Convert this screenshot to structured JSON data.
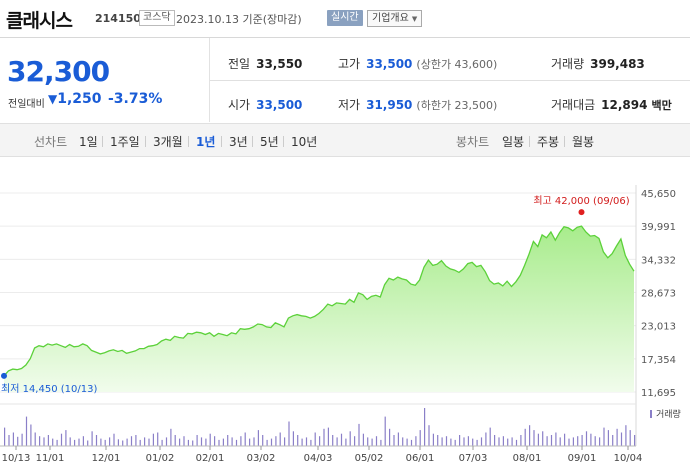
{
  "header": {
    "company": "클래시스",
    "code": "214150",
    "market": "코스닥",
    "date_text": "2023.10.13 기준(장마감)",
    "realtime": "실시간",
    "company_info": "기업개요"
  },
  "price": {
    "current": "32,300",
    "change_label": "전일대비",
    "change_arrow": "▼",
    "change_value": "1,250",
    "change_pct": "-3.73%"
  },
  "stats": {
    "prev_label": "전일",
    "prev_value": "33,550",
    "high_label": "고가",
    "high_value": "33,500",
    "high_limit": "(상한가 43,600)",
    "volume_label": "거래량",
    "volume_value": "399,483",
    "open_label": "시가",
    "open_value": "33,500",
    "low_label": "저가",
    "low_value": "31,950",
    "low_limit": "(하한가 23,500)",
    "amount_label": "거래대금",
    "amount_value": "12,894",
    "amount_unit": "백만"
  },
  "tabs": {
    "line_group": "선차트",
    "line_items": [
      "1일",
      "1주일",
      "3개월",
      "1년",
      "3년",
      "5년",
      "10년"
    ],
    "active": "1년",
    "candle_group": "봉차트",
    "candle_items": [
      "일봉",
      "주봉",
      "월봉"
    ]
  },
  "chart_data": {
    "type": "area",
    "y_ticks": [
      "45,650",
      "39,991",
      "34,332",
      "28,673",
      "23,013",
      "17,354",
      "11,695"
    ],
    "ylim": [
      11695,
      45650
    ],
    "x_ticks": [
      "10/13",
      "11/01",
      "12/01",
      "01/02",
      "02/01",
      "03/02",
      "04/03",
      "05/02",
      "06/01",
      "07/03",
      "08/01",
      "09/01",
      "10/04"
    ],
    "high_label": "최고 42,000 (09/06)",
    "low_label": "최저 14,450 (10/13)",
    "volume_label": "거래량",
    "series": [
      {
        "values": [
          14450,
          15300,
          15600,
          15500,
          15700,
          16300,
          17400,
          19200,
          19600,
          19400,
          19900,
          19700,
          19900,
          19600,
          19300,
          19800,
          19400,
          19500,
          19900,
          19600,
          18800,
          18500,
          18200,
          18400,
          18700,
          18900,
          18600,
          18800,
          18300,
          18500,
          18700,
          19100,
          19100,
          19500,
          19600,
          19800,
          20400,
          20700,
          20500,
          21200,
          21000,
          20900,
          21700,
          21600,
          21900,
          21800,
          21500,
          21800,
          21200,
          21700,
          21500,
          21300,
          21800,
          21600,
          22500,
          22400,
          22500,
          22800,
          23300,
          23200,
          22800,
          22700,
          23500,
          23200,
          22800,
          24300,
          24700,
          24900,
          24700,
          24600,
          24300,
          24600,
          25100,
          25800,
          26700,
          26400,
          26900,
          26800,
          26700,
          27500,
          27000,
          28600,
          28300,
          27500,
          28000,
          28200,
          27900,
          30000,
          31100,
          30800,
          31300,
          31000,
          30800,
          30100,
          29900,
          30800,
          33000,
          34200,
          33300,
          33500,
          34100,
          33200,
          32700,
          32500,
          32100,
          32700,
          33600,
          33800,
          33100,
          33300,
          32200,
          30700,
          30100,
          30300,
          29800,
          30600,
          29700,
          30500,
          31600,
          33300,
          35200,
          37400,
          36500,
          38500,
          38000,
          39000,
          37600,
          38900,
          39900,
          39700,
          39200,
          39800,
          40000,
          39000,
          38300,
          38400,
          37900,
          35600,
          34600,
          35300,
          36600,
          37800,
          35000,
          33500,
          32300
        ]
      }
    ],
    "volume": [
      30,
      18,
      22,
      15,
      20,
      48,
      35,
      22,
      16,
      14,
      18,
      12,
      10,
      20,
      26,
      14,
      10,
      12,
      16,
      9,
      24,
      18,
      12,
      10,
      14,
      20,
      11,
      9,
      12,
      16,
      18,
      10,
      14,
      12,
      20,
      22,
      10,
      14,
      28,
      18,
      12,
      16,
      10,
      9,
      18,
      14,
      12,
      20,
      16,
      10,
      12,
      18,
      14,
      10,
      16,
      22,
      12,
      14,
      26,
      18,
      10,
      12,
      16,
      22,
      14,
      40,
      24,
      18,
      12,
      14,
      10,
      22,
      16,
      28,
      30,
      18,
      14,
      20,
      12,
      24,
      16,
      36,
      20,
      14,
      12,
      16,
      10,
      48,
      28,
      18,
      22,
      14,
      12,
      10,
      16,
      26,
      62,
      34,
      20,
      18,
      14,
      16,
      12,
      10,
      18,
      14,
      16,
      12,
      10,
      14,
      22,
      30,
      18,
      14,
      16,
      12,
      14,
      10,
      18,
      28,
      34,
      26,
      20,
      24,
      16,
      18,
      22,
      14,
      20,
      12,
      14,
      16,
      18,
      24,
      20,
      16,
      14,
      30,
      26,
      18,
      28,
      22,
      34,
      26,
      18
    ]
  }
}
